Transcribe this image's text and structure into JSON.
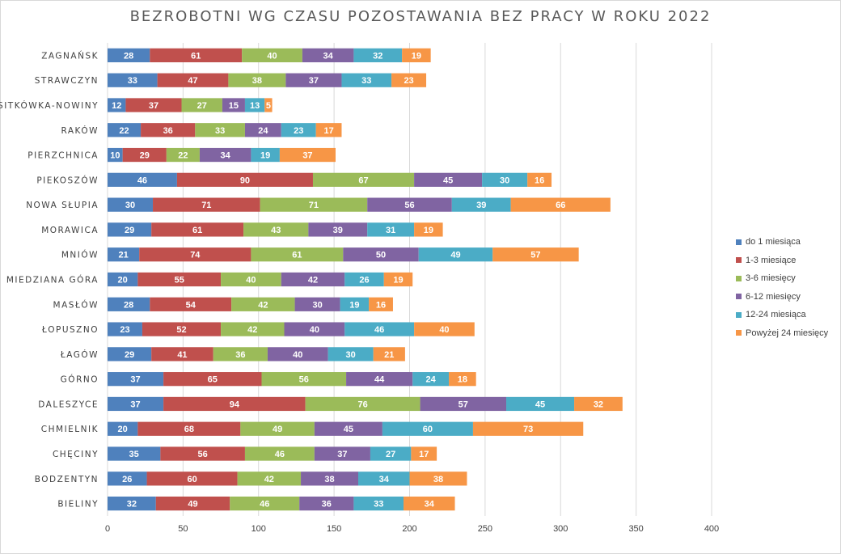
{
  "chart_data": {
    "type": "bar",
    "orientation": "horizontal",
    "stacked": true,
    "title": "BEZROBOTNI WG CZASU POZOSTAWANIA BEZ PRACY W ROKU 2022",
    "categories": [
      "ZAGNAŃSK",
      "STRAWCZYN",
      "SITKÓWKA-NOWINY",
      "RAKÓW",
      "PIERZCHNICA",
      "PIEKOSZÓW",
      "NOWA SŁUPIA",
      "MORAWICA",
      "MNIÓW",
      "MIEDZIANA GÓRA",
      "MASŁÓW",
      "ŁOPUSZNO",
      "ŁAGÓW",
      "GÓRNO",
      "DALESZYCE",
      "CHMIELNIK",
      "CHĘCINY",
      "BODZENTYN",
      "BIELINY"
    ],
    "series": [
      {
        "name": "do 1 miesiąca",
        "color": "#4F81BD",
        "values": [
          28,
          33,
          12,
          22,
          10,
          46,
          30,
          29,
          21,
          20,
          28,
          23,
          29,
          37,
          37,
          20,
          35,
          26,
          32
        ]
      },
      {
        "name": "1-3 miesiące",
        "color": "#C0504D",
        "values": [
          61,
          47,
          37,
          36,
          29,
          90,
          71,
          61,
          74,
          55,
          54,
          52,
          41,
          65,
          94,
          68,
          56,
          60,
          49
        ]
      },
      {
        "name": "3-6 miesięcy",
        "color": "#9BBB59",
        "values": [
          40,
          38,
          27,
          33,
          22,
          67,
          71,
          43,
          61,
          40,
          42,
          42,
          36,
          56,
          76,
          49,
          46,
          42,
          46
        ]
      },
      {
        "name": "6-12 miesięcy",
        "color": "#8064A2",
        "values": [
          34,
          37,
          15,
          24,
          34,
          45,
          56,
          39,
          50,
          42,
          30,
          40,
          40,
          44,
          57,
          45,
          37,
          38,
          36
        ]
      },
      {
        "name": "12-24 miesiąca",
        "color": "#4BACC6",
        "values": [
          32,
          33,
          13,
          23,
          19,
          30,
          39,
          31,
          49,
          26,
          19,
          46,
          30,
          24,
          45,
          60,
          27,
          34,
          33
        ]
      },
      {
        "name": "Powyżej 24 miesięcy",
        "color": "#F79646",
        "values": [
          19,
          23,
          5,
          17,
          37,
          16,
          66,
          19,
          57,
          19,
          16,
          40,
          21,
          18,
          32,
          73,
          17,
          38,
          34
        ]
      }
    ],
    "xlim": [
      0,
      400
    ],
    "xticks": [
      "0",
      "50",
      "100",
      "150",
      "200",
      "250",
      "300",
      "350",
      "400"
    ],
    "grid": true,
    "legend_position": "right",
    "data_labels": true
  }
}
